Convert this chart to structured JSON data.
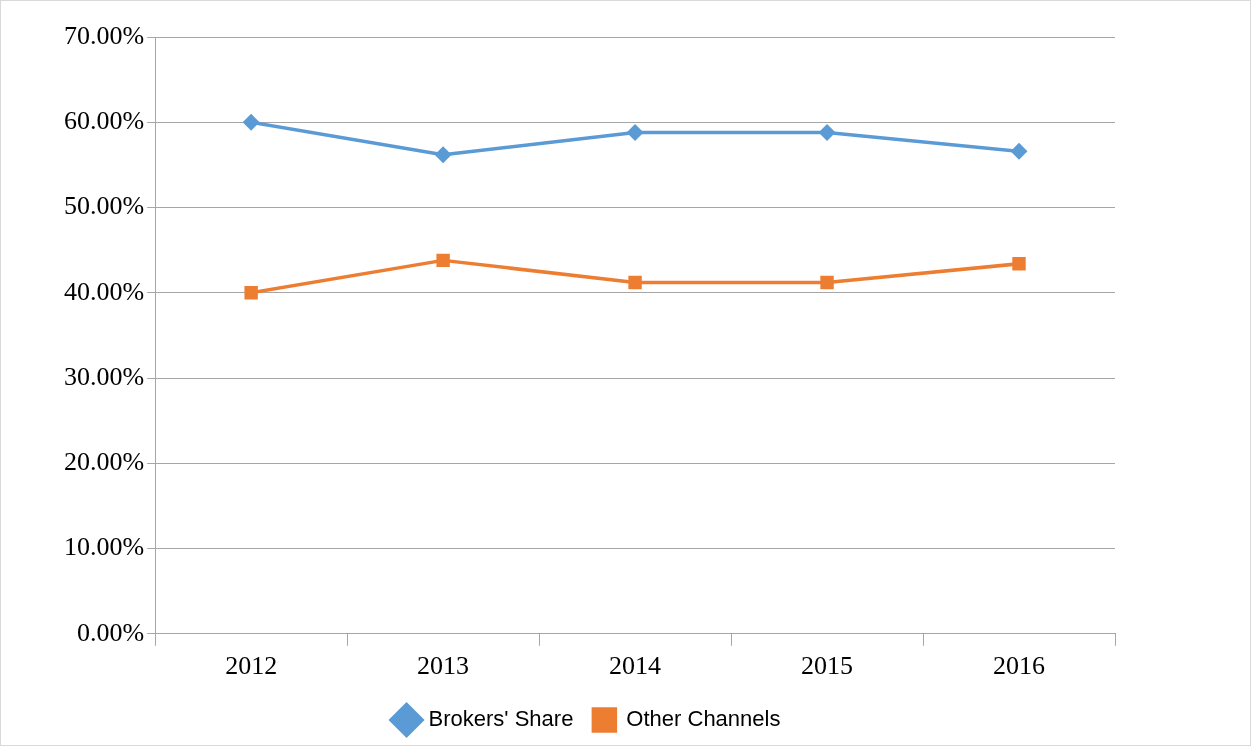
{
  "chart_data": {
    "type": "line",
    "categories": [
      "2012",
      "2013",
      "2014",
      "2015",
      "2016"
    ],
    "series": [
      {
        "name": "Brokers' Share",
        "color": "#5b9bd5",
        "marker": "diamond",
        "values": [
          60.0,
          56.2,
          58.8,
          58.8,
          56.6
        ]
      },
      {
        "name": "Other Channels",
        "color": "#ed7d31",
        "marker": "square",
        "values": [
          40.0,
          43.8,
          41.2,
          41.2,
          43.4
        ]
      }
    ],
    "ylim": [
      0,
      70
    ],
    "yticks": [
      {
        "value": 0,
        "label": "0.00%"
      },
      {
        "value": 10,
        "label": "10.00%"
      },
      {
        "value": 20,
        "label": "20.00%"
      },
      {
        "value": 30,
        "label": "30.00%"
      },
      {
        "value": 40,
        "label": "40.00%"
      },
      {
        "value": 50,
        "label": "50.00%"
      },
      {
        "value": 60,
        "label": "60.00%"
      },
      {
        "value": 70,
        "label": "70.00%"
      }
    ],
    "grid": "y",
    "legend": "bottom",
    "line_style": "solid"
  }
}
